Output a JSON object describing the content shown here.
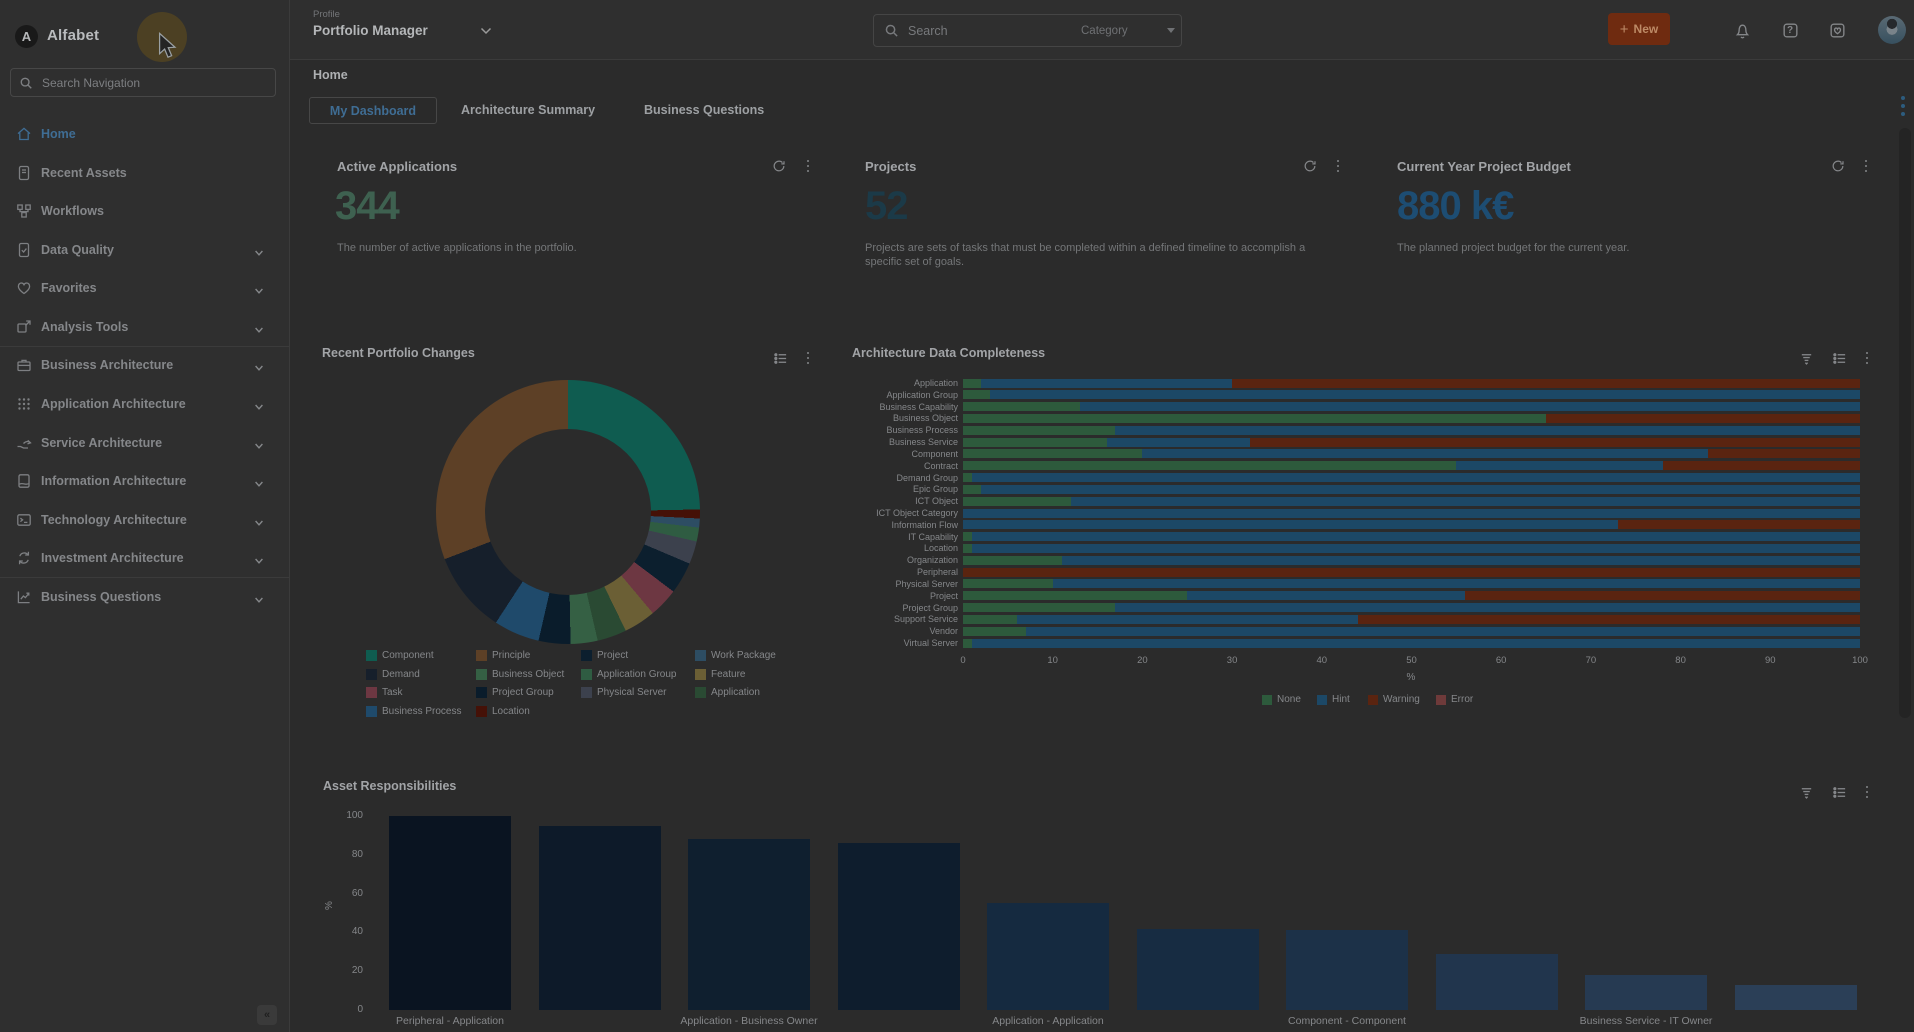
{
  "app": {
    "brand": "Alfabet",
    "logo_letter": "A"
  },
  "sidebar": {
    "search_placeholder": "Search Navigation",
    "collapse_glyph": "«",
    "items": [
      {
        "label": "Home",
        "icon": "home-icon",
        "active": true,
        "chevron": false
      },
      {
        "label": "Recent Assets",
        "icon": "recent-assets-icon",
        "active": false,
        "chevron": false
      },
      {
        "label": "Workflows",
        "icon": "workflows-icon",
        "active": false,
        "chevron": false
      },
      {
        "label": "Data Quality",
        "icon": "data-quality-icon",
        "active": false,
        "chevron": true
      },
      {
        "label": "Favorites",
        "icon": "heart-icon",
        "active": false,
        "chevron": true
      },
      {
        "label": "Analysis Tools",
        "icon": "analysis-tools-icon",
        "active": false,
        "chevron": true,
        "divider_after": true
      },
      {
        "label": "Business Architecture",
        "icon": "briefcase-icon",
        "active": false,
        "chevron": true
      },
      {
        "label": "Application Architecture",
        "icon": "app-grid-icon",
        "active": false,
        "chevron": true
      },
      {
        "label": "Service Architecture",
        "icon": "service-hand-icon",
        "active": false,
        "chevron": true
      },
      {
        "label": "Information Architecture",
        "icon": "book-icon",
        "active": false,
        "chevron": true
      },
      {
        "label": "Technology Architecture",
        "icon": "terminal-icon",
        "active": false,
        "chevron": true
      },
      {
        "label": "Investment Architecture",
        "icon": "investment-cycle-icon",
        "active": false,
        "chevron": true,
        "divider_after": true
      },
      {
        "label": "Business Questions",
        "icon": "line-chart-icon",
        "active": false,
        "chevron": true
      }
    ]
  },
  "header": {
    "profile_label": "Profile",
    "profile_value": "Portfolio Manager",
    "search_placeholder": "Search",
    "category_label": "Category",
    "new_button_label": "New",
    "new_plus_glyph": "+",
    "help_glyph": "?"
  },
  "page": {
    "breadcrumb": "Home",
    "tabs": [
      {
        "label": "My Dashboard",
        "active": true
      },
      {
        "label": "Architecture Summary",
        "active": false
      },
      {
        "label": "Business Questions",
        "active": false
      }
    ]
  },
  "kpis": [
    {
      "title": "Active Applications",
      "value": "344",
      "value_color": "#3e6150",
      "description": "The number of active applications in the portfolio."
    },
    {
      "title": "Projects",
      "value": "52",
      "value_color": "#1b3a48",
      "description": "Projects are sets of tasks that must be completed within a defined timeline to accomplish a specific set of goals."
    },
    {
      "title": "Current Year Project Budget",
      "value": "880 k€",
      "value_color": "#1d4d73",
      "description": "The planned project budget for the current year."
    }
  ],
  "chart_data": [
    {
      "type": "pie",
      "subtype": "donut",
      "title": "Recent Portfolio Changes",
      "legend_position": "bottom",
      "series": [
        {
          "name": "Component",
          "value": 25.8,
          "color": "#0f5c50"
        },
        {
          "name": "Location",
          "value": 1.1,
          "color": "#451107"
        },
        {
          "name": "Work Package",
          "value": 1.1,
          "color": "#2d4d63"
        },
        {
          "name": "Application Group",
          "value": 1.7,
          "color": "#2f5c42"
        },
        {
          "name": "Physical Server",
          "value": 2.8,
          "color": "#3c414d"
        },
        {
          "name": "Project",
          "value": 3.9,
          "color": "#0c1f2e"
        },
        {
          "name": "Task",
          "value": 3.6,
          "color": "#6d3742"
        },
        {
          "name": "Feature",
          "value": 3.9,
          "color": "#6b5f35"
        },
        {
          "name": "Application",
          "value": 3.6,
          "color": "#2a4a33"
        },
        {
          "name": "Business Object",
          "value": 3.3,
          "color": "#356044"
        },
        {
          "name": "Project Group",
          "value": 3.9,
          "color": "#0a1c2b"
        },
        {
          "name": "Business Process",
          "value": 5.6,
          "color": "#1f4a6b"
        },
        {
          "name": "Demand",
          "value": 10.0,
          "color": "#161f2b"
        },
        {
          "name": "Principle",
          "value": 29.7,
          "color": "#5d4026"
        }
      ],
      "legend": [
        {
          "name": "Component",
          "color": "#0f5c50"
        },
        {
          "name": "Principle",
          "color": "#5d4026"
        },
        {
          "name": "Project",
          "color": "#0c1f2e"
        },
        {
          "name": "Work Package",
          "color": "#2d4d63"
        },
        {
          "name": "Demand",
          "color": "#161f2b"
        },
        {
          "name": "Business Object",
          "color": "#356044"
        },
        {
          "name": "Application Group",
          "color": "#2f5c42"
        },
        {
          "name": "Feature",
          "color": "#6b5f35"
        },
        {
          "name": "Task",
          "color": "#6d3742"
        },
        {
          "name": "Project Group",
          "color": "#0a1c2b"
        },
        {
          "name": "Physical Server",
          "color": "#3c414d"
        },
        {
          "name": "Application",
          "color": "#2a4a33"
        },
        {
          "name": "Business Process",
          "color": "#1f4a6b"
        },
        {
          "name": "Location",
          "color": "#451107"
        }
      ]
    },
    {
      "type": "bar",
      "orientation": "horizontal",
      "stacked": true,
      "title": "Architecture Data Completeness",
      "xlabel": "%",
      "xlim": [
        0,
        100
      ],
      "xticks": [
        0,
        10,
        20,
        30,
        40,
        50,
        60,
        70,
        80,
        90,
        100
      ],
      "legend_position": "bottom",
      "categories": [
        "Application",
        "Application Group",
        "Business Capability",
        "Business Object",
        "Business Process",
        "Business Service",
        "Component",
        "Contract",
        "Demand Group",
        "Epic Group",
        "ICT Object",
        "ICT Object Category",
        "Information Flow",
        "IT Capability",
        "Location",
        "Organization",
        "Peripheral",
        "Physical Server",
        "Project",
        "Project Group",
        "Support Service",
        "Vendor",
        "Virtual Server"
      ],
      "series": [
        {
          "name": "None",
          "color": "#2d5a3c",
          "values": [
            2,
            3,
            13,
            65,
            17,
            16,
            20,
            55,
            1,
            2,
            12,
            0,
            0,
            1,
            1,
            11,
            0,
            10,
            25,
            17,
            6,
            7,
            1
          ]
        },
        {
          "name": "Hint",
          "color": "#1c4866",
          "values": [
            28,
            97,
            87,
            0,
            83,
            16,
            63,
            23,
            99,
            98,
            88,
            100,
            73,
            99,
            99,
            89,
            0,
            90,
            31,
            83,
            38,
            93,
            99
          ]
        },
        {
          "name": "Warning",
          "color": "#5a2410",
          "values": [
            70,
            0,
            0,
            35,
            0,
            68,
            17,
            22,
            0,
            0,
            0,
            0,
            27,
            0,
            0,
            0,
            100,
            0,
            44,
            0,
            56,
            0,
            0
          ]
        },
        {
          "name": "Error",
          "color": "#6e3a3a",
          "values": [
            0,
            0,
            0,
            0,
            0,
            0,
            0,
            0,
            0,
            0,
            0,
            0,
            0,
            0,
            0,
            0,
            0,
            0,
            0,
            0,
            0,
            0,
            0
          ]
        }
      ]
    },
    {
      "type": "bar",
      "orientation": "vertical",
      "title": "Asset Responsibilities",
      "ylabel": "%",
      "ylim": [
        0,
        100
      ],
      "yticks": [
        0,
        20,
        40,
        60,
        80,
        100
      ],
      "categories": [
        "Peripheral - Application",
        "",
        "Application - Business Owner",
        "",
        "Application - Application",
        "",
        "Component - Component",
        "",
        "Business Service - IT Owner",
        ""
      ],
      "values": [
        100,
        95,
        88,
        86,
        55,
        42,
        41,
        29,
        18,
        13
      ],
      "bar_colors": [
        "#0a1421",
        "#0d1a29",
        "#0f1f2f",
        "#0e1d2d",
        "#152a40",
        "#172c42",
        "#1c3148",
        "#21354d",
        "#263a52",
        "#2b3f57"
      ]
    }
  ]
}
